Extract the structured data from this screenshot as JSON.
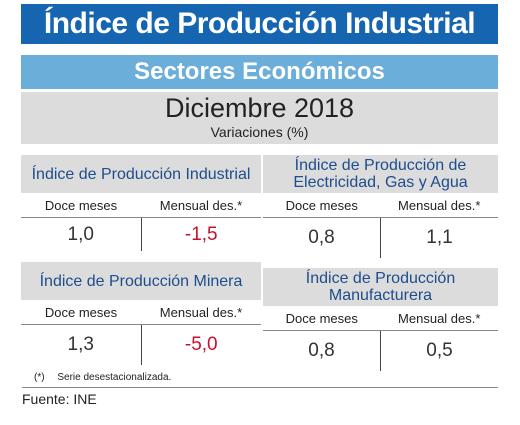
{
  "header": {
    "title": "Índice de Producción Industrial",
    "subtitle": "Sectores Económicos"
  },
  "period": {
    "title": "Diciembre 2018",
    "subtitle": "Variaciones (%)"
  },
  "cards": [
    {
      "title": "Índice de Producción Industrial",
      "col1_label": "Doce meses",
      "col2_label": "Mensual des.*",
      "col1_value": "1,0",
      "col2_value": "-1,5"
    },
    {
      "title": "Índice de Producción de Electricidad, Gas y Agua",
      "col1_label": "Doce meses",
      "col2_label": "Mensual des.*",
      "col1_value": "0,8",
      "col2_value": "1,1"
    },
    {
      "title": "Índice de Producción Minera",
      "col1_label": "Doce meses",
      "col2_label": "Mensual des.*",
      "col1_value": "1,3",
      "col2_value": "-5,0"
    },
    {
      "title": "Índice de Producción Manufacturera",
      "col1_label": "Doce meses",
      "col2_label": "Mensual des.*",
      "col1_value": "0,8",
      "col2_value": "0,5"
    }
  ],
  "footnote": {
    "mark": "(*)",
    "text": "Serie desestacionalizada."
  },
  "source": "Fuente: INE",
  "colors": {
    "banner": "#1565b0",
    "sub_banner": "#6aaed9",
    "panel_gray": "#dcdcdc",
    "title_blue": "#1e4d8c",
    "negative_red": "#c8102e"
  }
}
